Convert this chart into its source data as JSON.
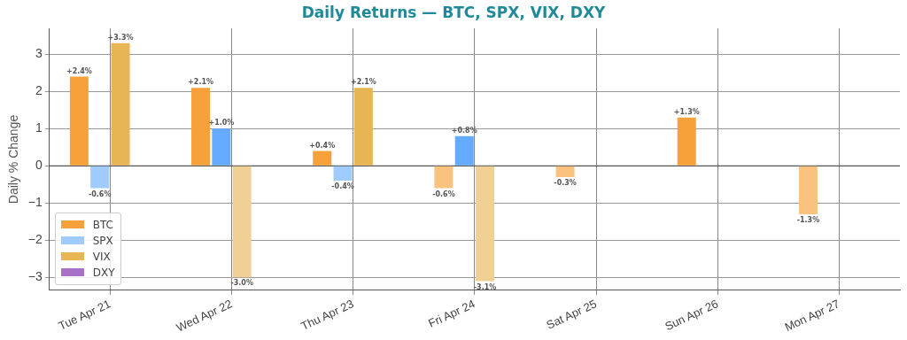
{
  "chart_data": {
    "type": "bar",
    "title": "Daily Returns — BTC, SPX, VIX, DXY",
    "ylabel": "Daily % Change",
    "categories": [
      "Tue Apr 21",
      "Wed Apr 22",
      "Thu Apr 23",
      "Fri Apr 24",
      "Sat Apr 25",
      "Sun Apr 26",
      "Mon Apr 27"
    ],
    "series": [
      {
        "name": "BTC",
        "color": "#f7a13a",
        "colors": [
          "#f7a13a",
          "#f7a13a",
          "#f7a13a",
          "#f9c37f",
          "#f9c37f",
          "#f7a13a",
          "#f9c37f"
        ],
        "values": [
          2.4,
          2.1,
          0.4,
          -0.6,
          -0.3,
          1.3,
          -1.3
        ],
        "value_labels": [
          "+2.4%",
          "+2.1%",
          "+0.4%",
          "-0.6%",
          "-0.3%",
          "+1.3%",
          "-1.3%"
        ]
      },
      {
        "name": "SPX",
        "color": "#9fcbff",
        "colors": [
          "#9fcbff",
          "#64aaff",
          "#9fcbff",
          "#64aaff",
          null,
          null,
          null
        ],
        "values": [
          -0.6,
          1.0,
          -0.4,
          0.8,
          null,
          null,
          null
        ],
        "value_labels": [
          "-0.6%",
          "+1.0%",
          "-0.4%",
          "+0.8%",
          null,
          null,
          null
        ]
      },
      {
        "name": "VIX",
        "color": "#e8b554",
        "colors": [
          "#e8b554",
          "#f0d095",
          "#e8b554",
          "#f0d095",
          null,
          null,
          null
        ],
        "values": [
          3.3,
          -3.0,
          2.1,
          -3.1,
          null,
          null,
          null
        ],
        "value_labels": [
          "+3.3%",
          "-3.0%",
          "+2.1%",
          "-3.1%",
          null,
          null,
          null
        ]
      },
      {
        "name": "DXY",
        "color": "#a970c8",
        "values": [
          null,
          null,
          null,
          null,
          null,
          null,
          null
        ]
      }
    ],
    "ylim": [
      -3.35,
      3.7
    ],
    "yticks": [
      {
        "value": -3,
        "label": "−3"
      },
      {
        "value": -2,
        "label": "−2"
      },
      {
        "value": -1,
        "label": "−1"
      },
      0,
      1,
      2,
      3
    ],
    "ref_lines": [
      {
        "axis": "y",
        "value": 0,
        "color": "#555555"
      }
    ],
    "grid": true,
    "legend": "bottom left"
  }
}
